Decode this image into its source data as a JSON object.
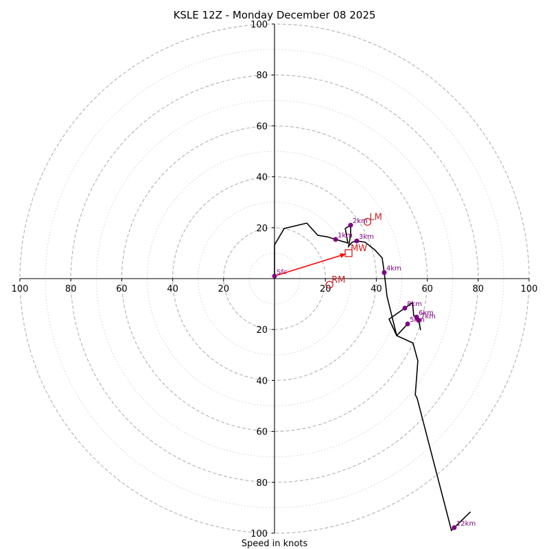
{
  "chart_data": {
    "type": "line",
    "subtype": "hodograph",
    "title": "KSLE 12Z - Monday December 08 2025",
    "xlabel": "Speed in knots",
    "ylabel": "",
    "xlim": [
      -100,
      100
    ],
    "ylim": [
      -100,
      100
    ],
    "tick_values": [
      100,
      80,
      60,
      40,
      20,
      20,
      40,
      60,
      80,
      100
    ],
    "x_ticks": [
      -100,
      -80,
      -60,
      -40,
      -20,
      20,
      40,
      60,
      80,
      100
    ],
    "y_ticks": [
      100,
      80,
      60,
      40,
      20,
      -20,
      -40,
      -60,
      -80,
      -100
    ],
    "x_tick_labels": [
      "100",
      "80",
      "60",
      "40",
      "20",
      "20",
      "40",
      "60",
      "80",
      "100"
    ],
    "y_tick_labels": [
      "100",
      "80",
      "60",
      "40",
      "20",
      "20",
      "40",
      "60",
      "80",
      "100"
    ],
    "rings": {
      "major_dashed_knots": [
        20,
        40,
        60,
        80,
        100
      ],
      "minor_dotted_knots": [
        10,
        30,
        50,
        70,
        90
      ]
    },
    "grid": true,
    "colors": {
      "trace": "#000000",
      "height_markers": "#800080",
      "motion": "#cc1f1f",
      "shear_vector": "#ff0000",
      "rings": "#b0b0b0"
    },
    "series": [
      {
        "name": "hodograph trace",
        "u": [
          0,
          0,
          0,
          3.8,
          12.7,
          17,
          20.8,
          24,
          28.8,
          27.8,
          29.9,
          29.9,
          29.1,
          30.5,
          32.3,
          35.6,
          39.4,
          42.3,
          43.1,
          44.2,
          48,
          45,
          51.2,
          54.2,
          54.7,
          55.8,
          56.6,
          57.4
        ],
        "v": [
          1,
          5.7,
          13.2,
          19.7,
          21.8,
          17,
          16.4,
          15.4,
          14,
          19.7,
          21,
          17,
          12.7,
          14.3,
          14.8,
          14.3,
          11.3,
          8.1,
          2.4,
          -7,
          -22.4,
          -15.9,
          -11.6,
          -9.4,
          -14.6,
          -15.1,
          -16.4,
          -20.2
        ]
      },
      {
        "name": "hodograph trace upper",
        "u": [
          52.3,
          48,
          54.4,
          56.3,
          55.3,
          56,
          69.5,
          70.6,
          77
        ],
        "v": [
          -17.8,
          -22.4,
          -25.3,
          -32.3,
          -45.6,
          -46.9,
          -98.9,
          -97.8,
          -91.6
        ]
      }
    ],
    "height_points": [
      {
        "label": "Sfc",
        "u": 0,
        "v": 1
      },
      {
        "label": "1km",
        "u": 24,
        "v": 15.4
      },
      {
        "label": "2km",
        "u": 29.9,
        "v": 21
      },
      {
        "label": "3km",
        "u": 32.3,
        "v": 14.8
      },
      {
        "label": "4km",
        "u": 43.1,
        "v": 2.4
      },
      {
        "label": "5km",
        "u": 52.3,
        "v": -17.8
      },
      {
        "label": "6km",
        "u": 55.8,
        "v": -15.1
      },
      {
        "label": "7km",
        "u": 56.6,
        "v": -16.4
      },
      {
        "label": "8km",
        "u": 51.2,
        "v": -11.6
      },
      {
        "label": "12km",
        "u": 70.6,
        "v": -97.8
      }
    ],
    "storm_motions": [
      {
        "label": "LM",
        "marker": "circle",
        "u": 36.5,
        "v": 22.3
      },
      {
        "label": "MW",
        "marker": "square",
        "u": 29.1,
        "v": 10
      },
      {
        "label": "RM",
        "marker": "circle",
        "u": 21.6,
        "v": -2.4
      }
    ],
    "shear_vector": {
      "from": {
        "u": 0,
        "v": 1
      },
      "to": {
        "u": 28,
        "v": 9.7
      }
    }
  }
}
